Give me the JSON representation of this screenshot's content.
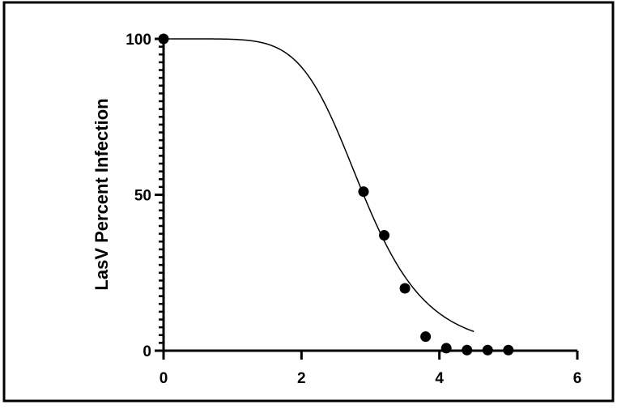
{
  "chart_data": {
    "type": "scatter",
    "title": "",
    "xlabel": "",
    "ylabel": "LasV Percent Infection",
    "xlim": [
      0,
      6
    ],
    "ylim": [
      0,
      100
    ],
    "x_ticks": [
      "0",
      "2",
      "4",
      "6"
    ],
    "y_ticks": [
      "0",
      "50",
      "100"
    ],
    "x_tick_values": [
      0,
      2,
      4,
      6
    ],
    "y_tick_values": [
      0,
      50,
      100
    ],
    "grid": false,
    "legend": "none",
    "series": [
      {
        "points": [
          {
            "x": 0,
            "y": 100
          },
          {
            "x": 2.9,
            "y": 51
          },
          {
            "x": 3.2,
            "y": 37
          },
          {
            "x": 3.5,
            "y": 20
          },
          {
            "x": 3.8,
            "y": 4.5
          },
          {
            "x": 4.1,
            "y": 0.8
          },
          {
            "x": 4.4,
            "y": 0.2
          },
          {
            "x": 4.7,
            "y": 0.2
          },
          {
            "x": 5.0,
            "y": 0.2
          }
        ]
      }
    ],
    "fit_curve": {
      "model": "sigmoid",
      "top": 100,
      "bottom": 0,
      "midpoint": 2.9,
      "slope": 2.7,
      "x_end": 4.5
    },
    "colors": {
      "points": "#000000",
      "curve": "#000000",
      "axes": "#000000",
      "frame": "#000000"
    }
  }
}
